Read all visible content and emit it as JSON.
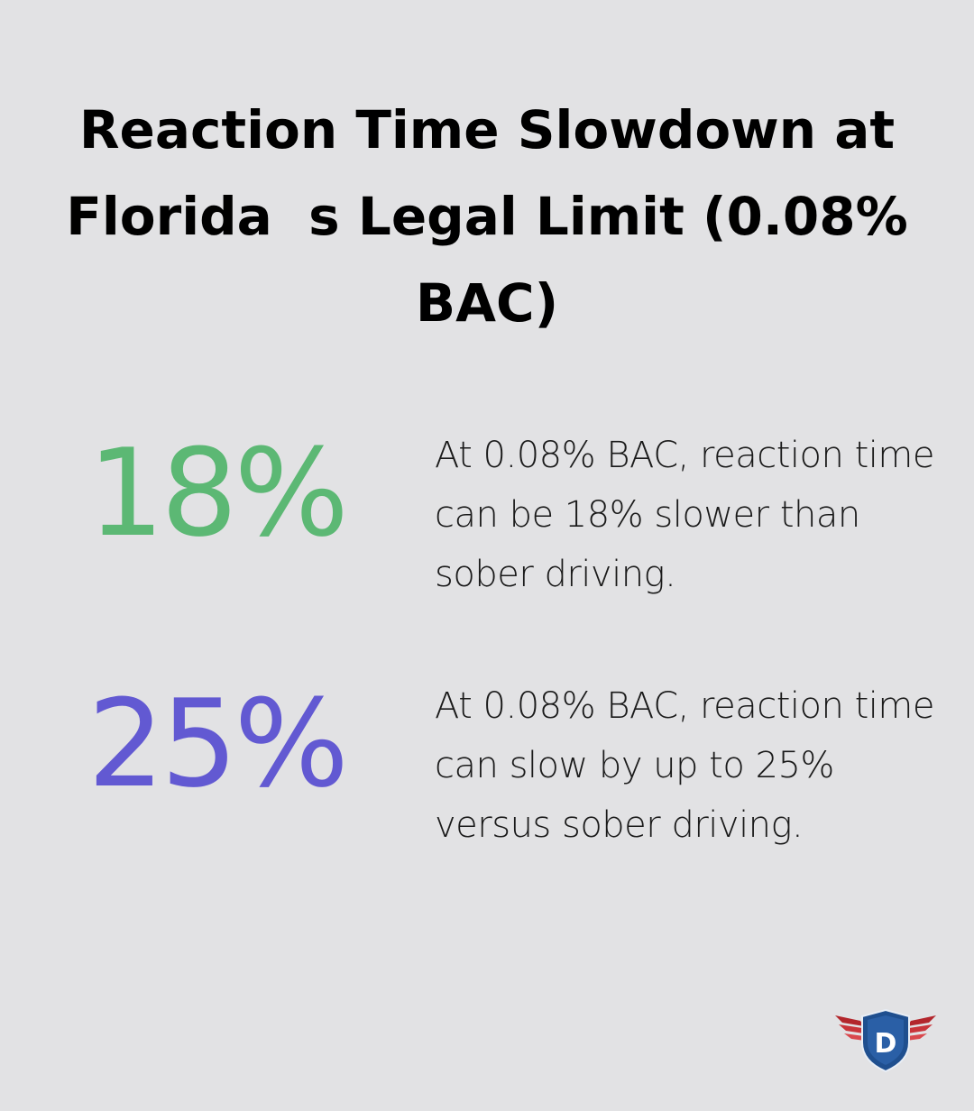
{
  "title": {
    "line1": "Reaction Time Slowdown at",
    "line2a": "Florida",
    "line2b": "s Legal Limit (0.08%",
    "line3": "BAC)"
  },
  "stats": [
    {
      "value": "18%",
      "color": "#5cb874",
      "description": "At 0.08% BAC, reaction time can be 18% slower than sober driving."
    },
    {
      "value": "25%",
      "color": "#6259d2",
      "description": "At 0.08% BAC, reaction time can slow by up to 25% versus sober driving."
    }
  ],
  "logo": {
    "letter": "D",
    "icon": "shield-wings-logo-icon",
    "shield_color": "#1f4f8f",
    "wing_color": "#b3262c"
  }
}
